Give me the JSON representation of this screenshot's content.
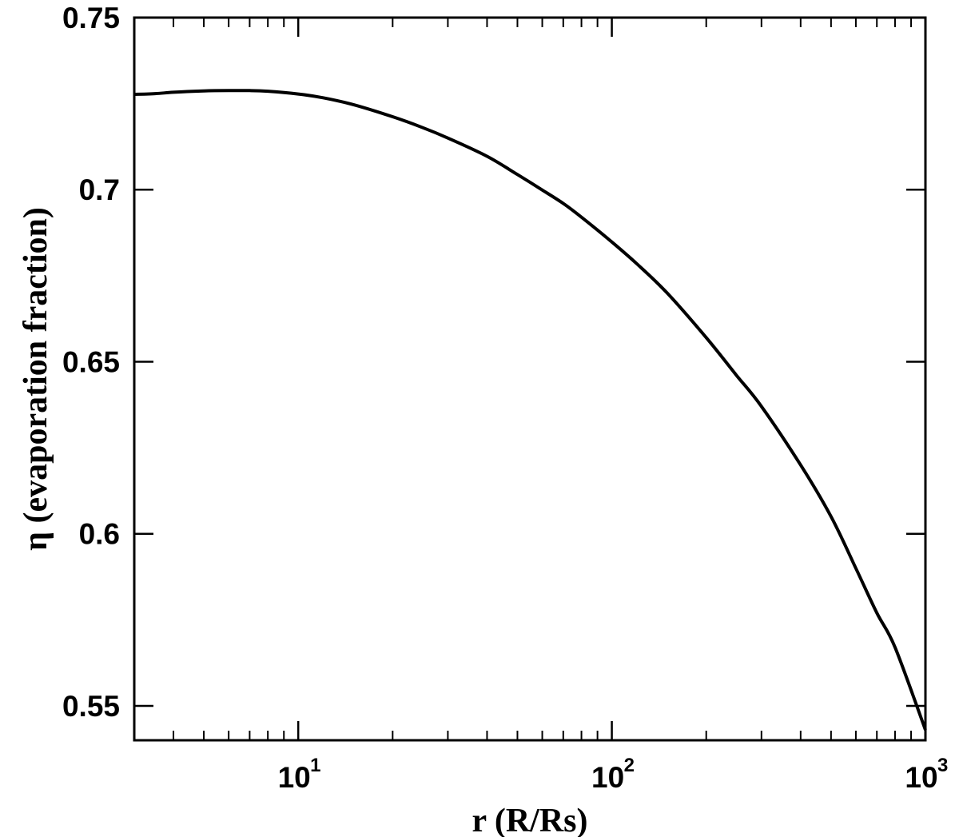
{
  "chart_data": {
    "type": "line",
    "xscale": "log",
    "xlim": [
      3,
      1000
    ],
    "ylim": [
      0.54,
      0.75
    ],
    "xlabel": "r (R/Rs)",
    "ylabel": "η (evaporation fraction)",
    "xticks": [
      {
        "value": 10,
        "base": "10",
        "exp": "1"
      },
      {
        "value": 100,
        "base": "10",
        "exp": "2"
      },
      {
        "value": 1000,
        "base": "10",
        "exp": "3"
      }
    ],
    "yticks": [
      {
        "value": 0.75,
        "label": "0.75"
      },
      {
        "value": 0.7,
        "label": "0.7"
      },
      {
        "value": 0.65,
        "label": "0.65"
      },
      {
        "value": 0.6,
        "label": "0.6"
      },
      {
        "value": 0.55,
        "label": "0.55"
      }
    ],
    "series": [
      {
        "color": "#000000",
        "x": [
          3,
          3.5,
          4,
          5,
          6,
          7,
          8,
          10,
          12,
          15,
          20,
          25,
          30,
          40,
          50,
          60,
          70,
          80,
          100,
          120,
          150,
          200,
          250,
          300,
          400,
          500,
          600,
          700,
          800,
          1000
        ],
        "y": [
          0.7277,
          0.7279,
          0.7283,
          0.7287,
          0.7288,
          0.7288,
          0.7286,
          0.7278,
          0.7267,
          0.7247,
          0.7212,
          0.718,
          0.715,
          0.7097,
          0.7044,
          0.6999,
          0.696,
          0.692,
          0.6848,
          0.6785,
          0.67,
          0.657,
          0.646,
          0.637,
          0.62,
          0.605,
          0.59,
          0.577,
          0.567,
          0.543
        ]
      }
    ]
  }
}
